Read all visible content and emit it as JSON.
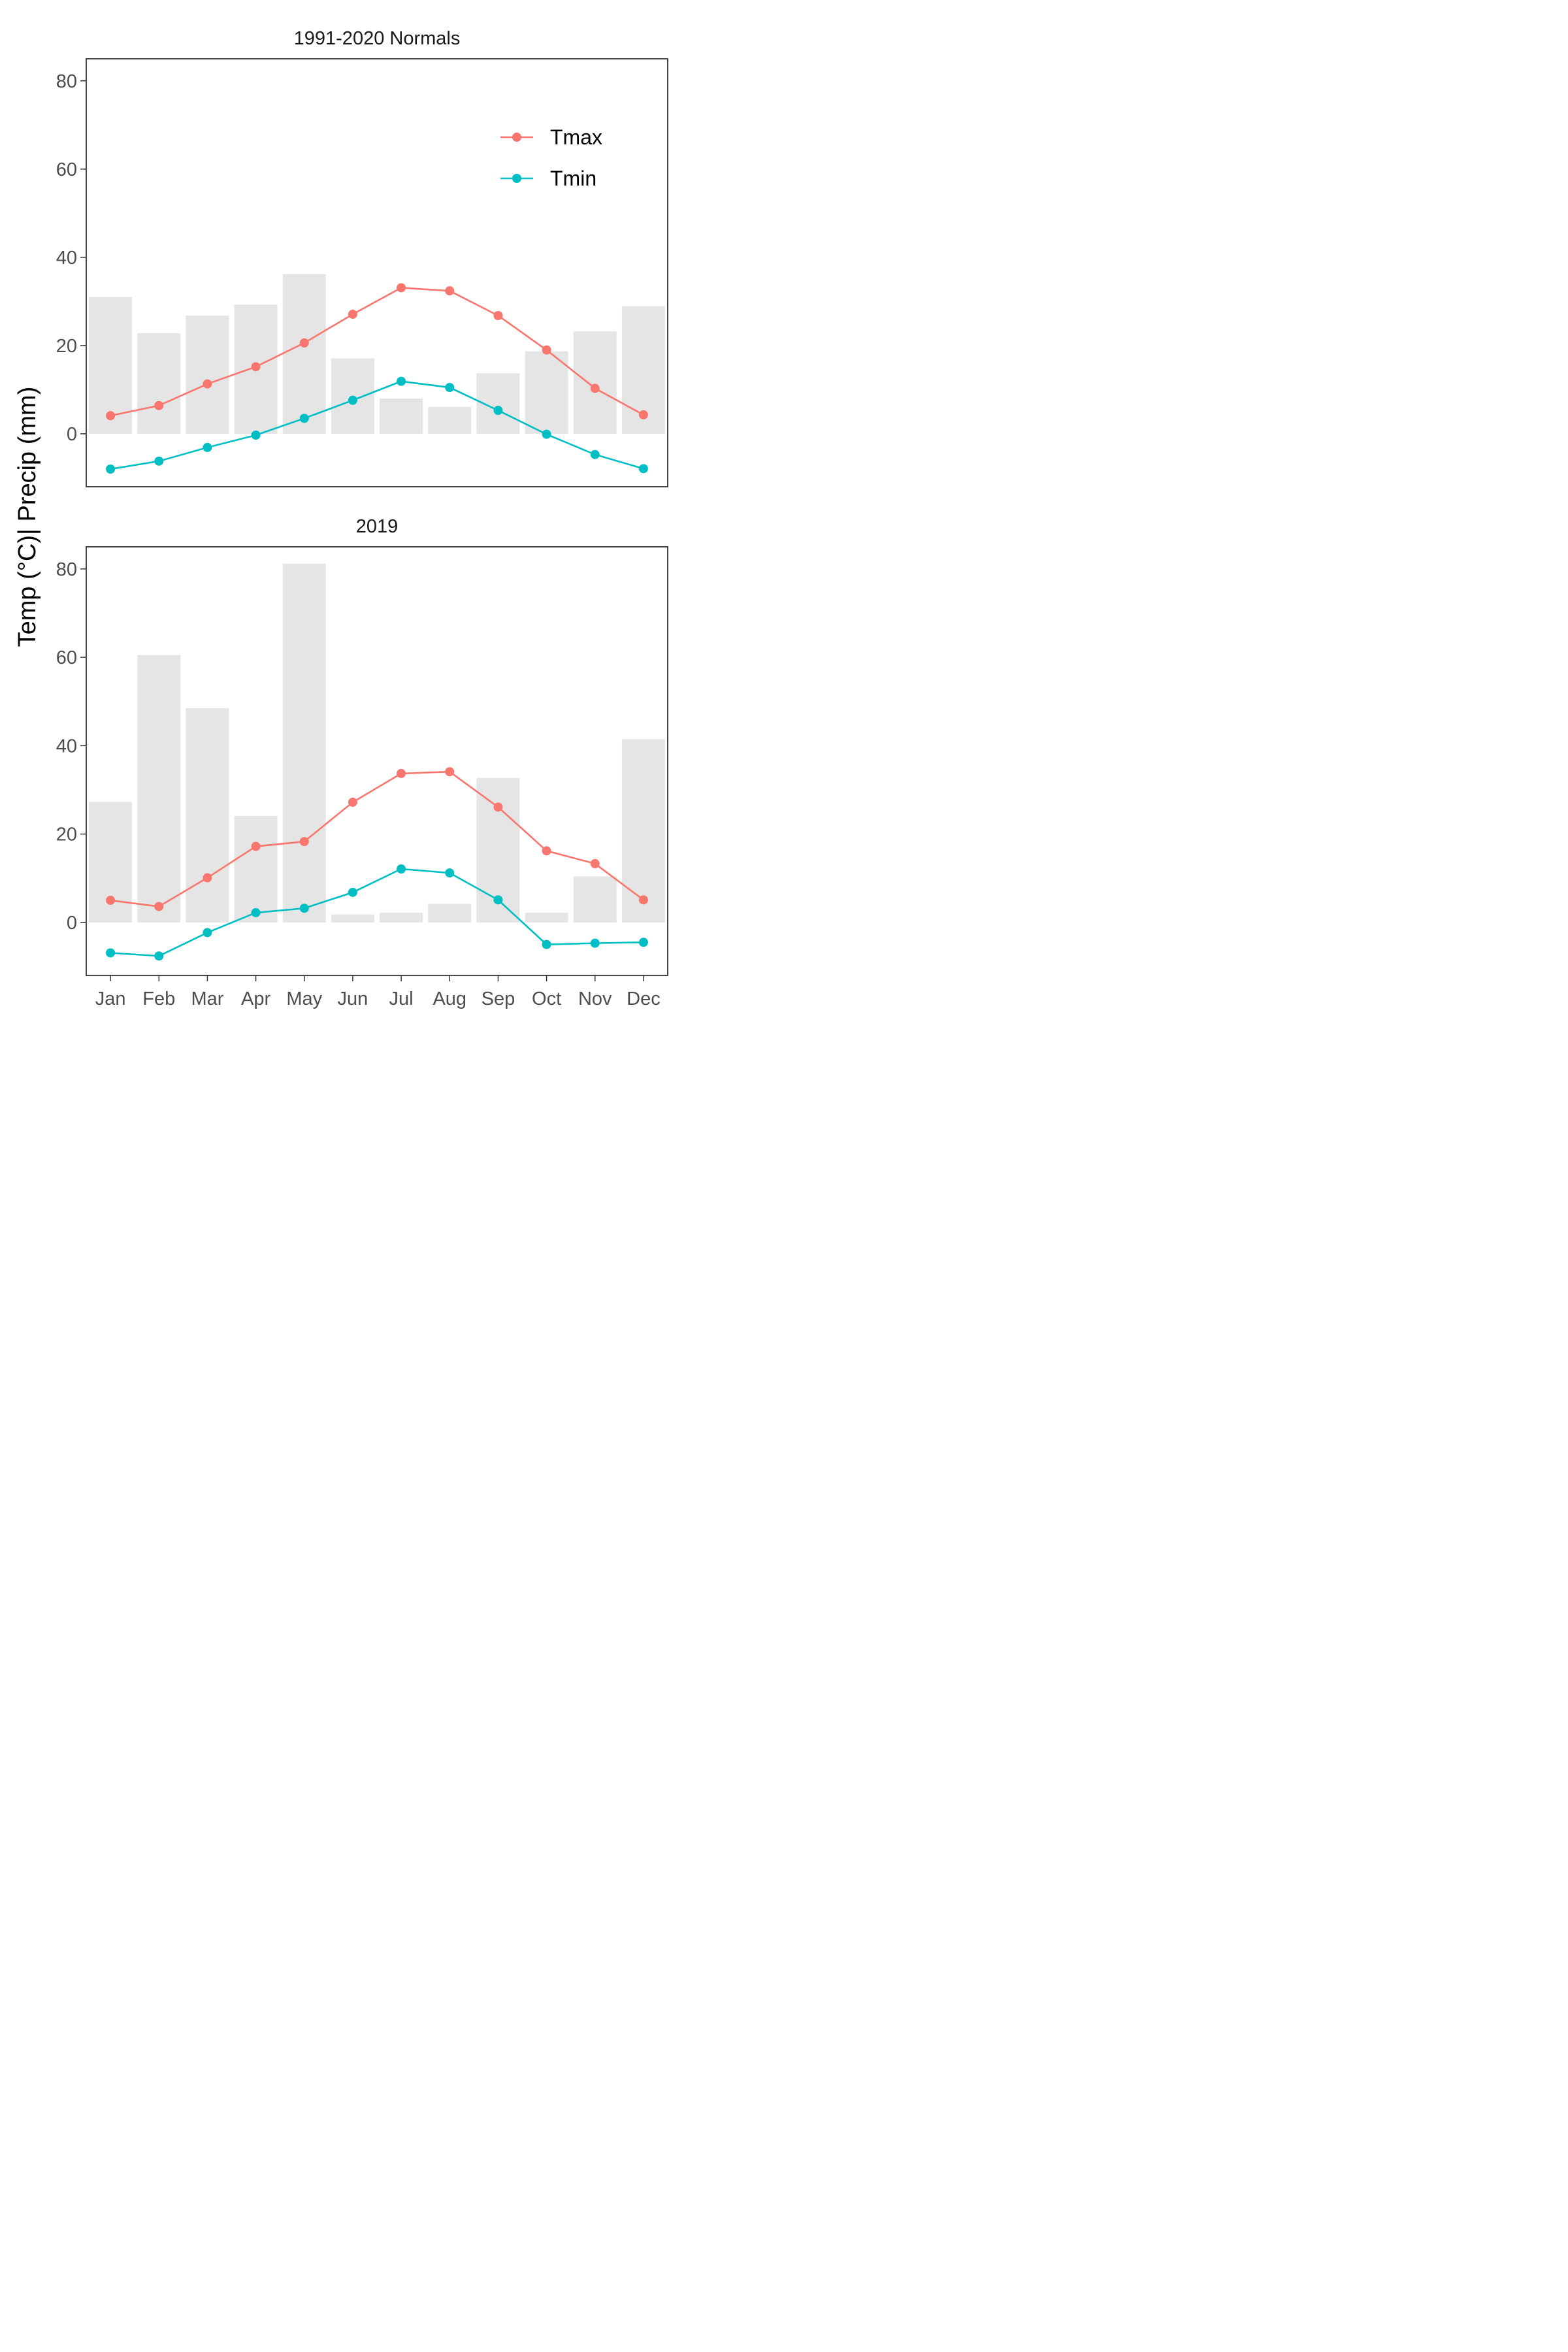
{
  "chart_data": [
    {
      "type": "bar+line",
      "title": "1991-2020 Normals",
      "ylabel": "Temp (°C)| Precip (mm)",
      "ylim": [
        -12,
        85
      ],
      "yticks": [
        0,
        20,
        40,
        60,
        80
      ],
      "categories": [
        "Jan",
        "Feb",
        "Mar",
        "Apr",
        "May",
        "Jun",
        "Jul",
        "Aug",
        "Sep",
        "Oct",
        "Nov",
        "Dec"
      ],
      "precip": [
        31,
        22.8,
        26.8,
        29.3,
        36.2,
        17.1,
        8,
        6.1,
        13.7,
        18.7,
        23.2,
        28.9
      ],
      "series": [
        {
          "name": "Tmax",
          "values": [
            4.1,
            6.4,
            11.3,
            15.2,
            20.6,
            27.1,
            33.1,
            32.4,
            26.8,
            19,
            10.3,
            4.3
          ]
        },
        {
          "name": "Tmin",
          "values": [
            -8,
            -6.2,
            -3.1,
            -0.3,
            3.5,
            7.6,
            11.9,
            10.5,
            5.3,
            -0.1,
            -4.7,
            -7.9
          ]
        }
      ],
      "legend": "top-right",
      "grid": false
    },
    {
      "type": "bar+line",
      "title": "2019",
      "ylabel": "Temp (°C)| Precip (mm)",
      "ylim": [
        -12,
        85
      ],
      "yticks": [
        0,
        20,
        40,
        60,
        80
      ],
      "categories": [
        "Jan",
        "Feb",
        "Mar",
        "Apr",
        "May",
        "Jun",
        "Jul",
        "Aug",
        "Sep",
        "Oct",
        "Nov",
        "Dec"
      ],
      "precip": [
        27.3,
        60.5,
        48.5,
        24.1,
        81.2,
        1.8,
        2.2,
        4.2,
        32.7,
        2.2,
        10.4,
        41.5
      ],
      "series": [
        {
          "name": "Tmax",
          "values": [
            5,
            3.6,
            10.1,
            17.2,
            18.3,
            27.2,
            33.7,
            34.1,
            26.1,
            16.2,
            13.3,
            5.1
          ]
        },
        {
          "name": "Tmin",
          "values": [
            -6.9,
            -7.6,
            -2.3,
            2.2,
            3.2,
            6.8,
            12.1,
            11.2,
            5.1,
            -5,
            -4.7,
            -4.5
          ]
        }
      ],
      "grid": false
    }
  ],
  "colors": {
    "Tmax": "#F8766D",
    "Tmin": "#00BFC4",
    "precip_bar": "#E5E5E5",
    "panel_border": "#333333"
  }
}
